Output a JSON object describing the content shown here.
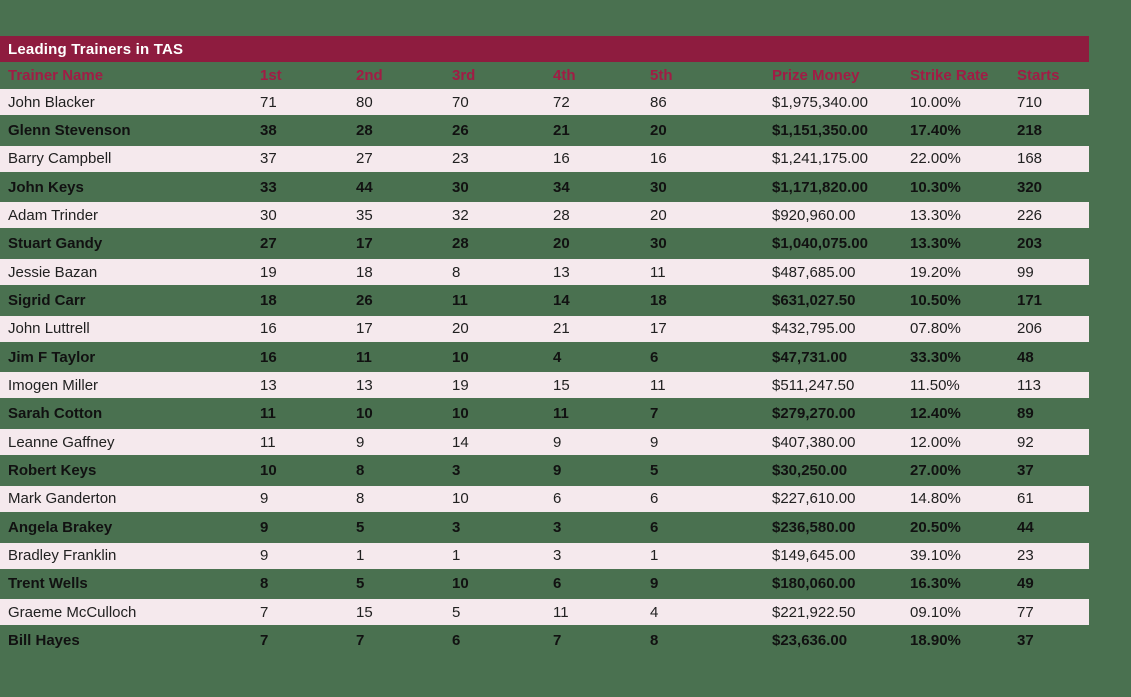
{
  "title": "Leading Trainers in TAS",
  "colors": {
    "background": "#4a7150",
    "title_bar": "#8e1c3f",
    "title_text": "#ffffff",
    "header_text": "#a11c45",
    "row_highlight": "#f5e9ed",
    "row_text": "#212121"
  },
  "table": {
    "columns": [
      "Trainer Name",
      "1st",
      "2nd",
      "3rd",
      "4th",
      "5th",
      "Prize Money",
      "Strike Rate",
      "Starts"
    ],
    "rows": [
      [
        "John Blacker",
        "71",
        "80",
        "70",
        "72",
        "86",
        "$1,975,340.00",
        "10.00%",
        "710"
      ],
      [
        "Glenn Stevenson",
        "38",
        "28",
        "26",
        "21",
        "20",
        "$1,151,350.00",
        "17.40%",
        "218"
      ],
      [
        "Barry Campbell",
        "37",
        "27",
        "23",
        "16",
        "16",
        "$1,241,175.00",
        "22.00%",
        "168"
      ],
      [
        "John Keys",
        "33",
        "44",
        "30",
        "34",
        "30",
        "$1,171,820.00",
        "10.30%",
        "320"
      ],
      [
        "Adam Trinder",
        "30",
        "35",
        "32",
        "28",
        "20",
        "$920,960.00",
        "13.30%",
        "226"
      ],
      [
        "Stuart Gandy",
        "27",
        "17",
        "28",
        "20",
        "30",
        "$1,040,075.00",
        "13.30%",
        "203"
      ],
      [
        "Jessie Bazan",
        "19",
        "18",
        "8",
        "13",
        "11",
        "$487,685.00",
        "19.20%",
        "99"
      ],
      [
        "Sigrid Carr",
        "18",
        "26",
        "11",
        "14",
        "18",
        "$631,027.50",
        "10.50%",
        "171"
      ],
      [
        "John Luttrell",
        "16",
        "17",
        "20",
        "21",
        "17",
        "$432,795.00",
        "07.80%",
        "206"
      ],
      [
        "Jim F Taylor",
        "16",
        "11",
        "10",
        "4",
        "6",
        "$47,731.00",
        "33.30%",
        "48"
      ],
      [
        "Imogen Miller",
        "13",
        "13",
        "19",
        "15",
        "11",
        "$511,247.50",
        "11.50%",
        "113"
      ],
      [
        "Sarah Cotton",
        "11",
        "10",
        "10",
        "11",
        "7",
        "$279,270.00",
        "12.40%",
        "89"
      ],
      [
        "Leanne Gaffney",
        "11",
        "9",
        "14",
        "9",
        "9",
        "$407,380.00",
        "12.00%",
        "92"
      ],
      [
        "Robert Keys",
        "10",
        "8",
        "3",
        "9",
        "5",
        "$30,250.00",
        "27.00%",
        "37"
      ],
      [
        "Mark Ganderton",
        "9",
        "8",
        "10",
        "6",
        "6",
        "$227,610.00",
        "14.80%",
        "61"
      ],
      [
        "Angela Brakey",
        "9",
        "5",
        "3",
        "3",
        "6",
        "$236,580.00",
        "20.50%",
        "44"
      ],
      [
        "Bradley Franklin",
        "9",
        "1",
        "1",
        "3",
        "1",
        "$149,645.00",
        "39.10%",
        "23"
      ],
      [
        "Trent Wells",
        "8",
        "5",
        "10",
        "6",
        "9",
        "$180,060.00",
        "16.30%",
        "49"
      ],
      [
        "Graeme McCulloch",
        "7",
        "15",
        "5",
        "11",
        "4",
        "$221,922.50",
        "09.10%",
        "77"
      ],
      [
        "Bill Hayes",
        "7",
        "7",
        "6",
        "7",
        "8",
        "$23,636.00",
        "18.90%",
        "37"
      ]
    ]
  }
}
